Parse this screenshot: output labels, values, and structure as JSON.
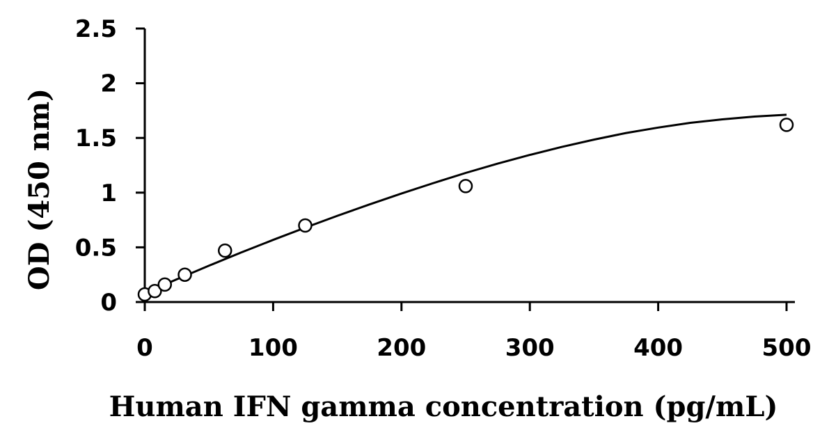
{
  "chart_data": {
    "type": "scatter",
    "title": "",
    "xlabel": "Human IFN gamma concentration (pg/mL)",
    "ylabel": "OD (450 nm)",
    "xlim": [
      0,
      500
    ],
    "ylim": [
      0,
      2.5
    ],
    "x_ticks": [
      "0",
      "100",
      "200",
      "300",
      "400",
      "500"
    ],
    "y_ticks": [
      "0",
      "0.5",
      "1",
      "1.5",
      "2",
      "2.5"
    ],
    "grid": false,
    "legend": "none",
    "series": [
      {
        "marker": "open-circle",
        "x": [
          0,
          7.8,
          15.6,
          31.2,
          62.5,
          125,
          250,
          500
        ],
        "y": [
          0.07,
          0.1,
          0.16,
          0.25,
          0.47,
          0.7,
          1.06,
          1.62
        ]
      }
    ],
    "fit_curve": {
      "type": "polynomial",
      "x": [
        0,
        25,
        50,
        75,
        100,
        125,
        150,
        175,
        200,
        225,
        250,
        275,
        300,
        325,
        350,
        375,
        400,
        425,
        450,
        475,
        500
      ],
      "y": [
        0.08,
        0.208,
        0.332,
        0.452,
        0.568,
        0.68,
        0.788,
        0.892,
        0.992,
        1.088,
        1.18,
        1.265,
        1.345,
        1.418,
        1.485,
        1.545,
        1.595,
        1.638,
        1.67,
        1.695,
        1.712
      ]
    },
    "colors": {
      "axis": "#000000",
      "marker_stroke": "#000000",
      "marker_fill": "#ffffff",
      "curve": "#000000"
    }
  }
}
